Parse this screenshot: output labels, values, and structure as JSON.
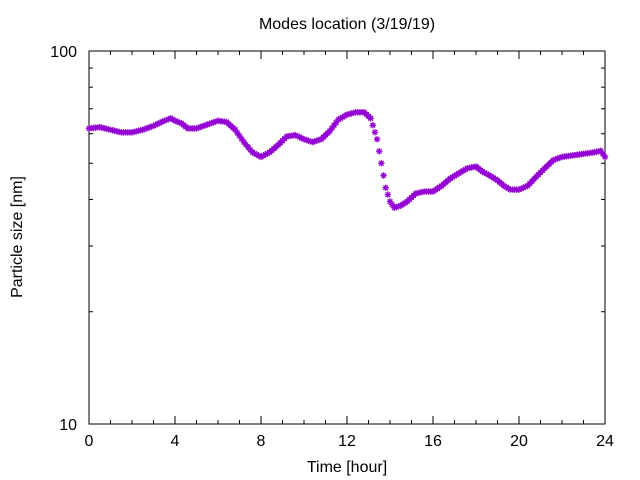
{
  "chart_data": {
    "type": "scatter",
    "title": "Modes location (3/19/19)",
    "xlabel": "Time [hour]",
    "ylabel": "Particle size [nm]",
    "xlim": [
      0,
      24
    ],
    "ylim": [
      10,
      100
    ],
    "yscale": "log",
    "xticks": [
      0,
      4,
      8,
      12,
      16,
      20,
      24
    ],
    "xtick_labels": [
      "0",
      "4",
      "8",
      "12",
      "16",
      "20",
      "24"
    ],
    "yticks": [
      10,
      100
    ],
    "ytick_labels": [
      "10",
      "100"
    ],
    "grid": false,
    "marker_color": "#9400d3",
    "marker": "asterisk",
    "points": [
      [
        0.0,
        62.0
      ],
      [
        0.5,
        62.5
      ],
      [
        1.0,
        61.5
      ],
      [
        1.5,
        60.5
      ],
      [
        2.0,
        60.5
      ],
      [
        2.5,
        61.5
      ],
      [
        3.0,
        63.0
      ],
      [
        3.5,
        65.0
      ],
      [
        3.8,
        66.0
      ],
      [
        4.0,
        65.0
      ],
      [
        4.3,
        64.0
      ],
      [
        4.6,
        62.0
      ],
      [
        5.0,
        62.0
      ],
      [
        5.5,
        63.5
      ],
      [
        6.0,
        65.0
      ],
      [
        6.4,
        64.5
      ],
      [
        6.8,
        61.5
      ],
      [
        7.2,
        57.0
      ],
      [
        7.6,
        53.5
      ],
      [
        8.0,
        52.0
      ],
      [
        8.4,
        53.5
      ],
      [
        8.8,
        56.0
      ],
      [
        9.2,
        59.0
      ],
      [
        9.6,
        59.5
      ],
      [
        10.0,
        58.0
      ],
      [
        10.4,
        57.0
      ],
      [
        10.8,
        58.0
      ],
      [
        11.2,
        61.0
      ],
      [
        11.6,
        65.5
      ],
      [
        12.0,
        67.5
      ],
      [
        12.4,
        68.5
      ],
      [
        12.8,
        68.5
      ],
      [
        13.1,
        66.0
      ],
      [
        13.4,
        58.0
      ],
      [
        13.6,
        50.0
      ],
      [
        13.8,
        43.0
      ],
      [
        14.0,
        39.5
      ],
      [
        14.2,
        38.0
      ],
      [
        14.5,
        38.5
      ],
      [
        14.8,
        39.5
      ],
      [
        15.2,
        41.5
      ],
      [
        15.6,
        42.0
      ],
      [
        16.0,
        42.0
      ],
      [
        16.4,
        43.5
      ],
      [
        16.8,
        45.5
      ],
      [
        17.2,
        47.0
      ],
      [
        17.6,
        48.5
      ],
      [
        18.0,
        49.0
      ],
      [
        18.3,
        47.5
      ],
      [
        18.6,
        46.5
      ],
      [
        19.0,
        45.0
      ],
      [
        19.3,
        43.5
      ],
      [
        19.6,
        42.5
      ],
      [
        20.0,
        42.5
      ],
      [
        20.4,
        43.5
      ],
      [
        20.8,
        46.0
      ],
      [
        21.2,
        48.5
      ],
      [
        21.6,
        51.0
      ],
      [
        22.0,
        52.0
      ],
      [
        22.5,
        52.5
      ],
      [
        23.0,
        53.0
      ],
      [
        23.5,
        53.5
      ],
      [
        23.8,
        54.0
      ],
      [
        24.0,
        52.0
      ]
    ]
  }
}
